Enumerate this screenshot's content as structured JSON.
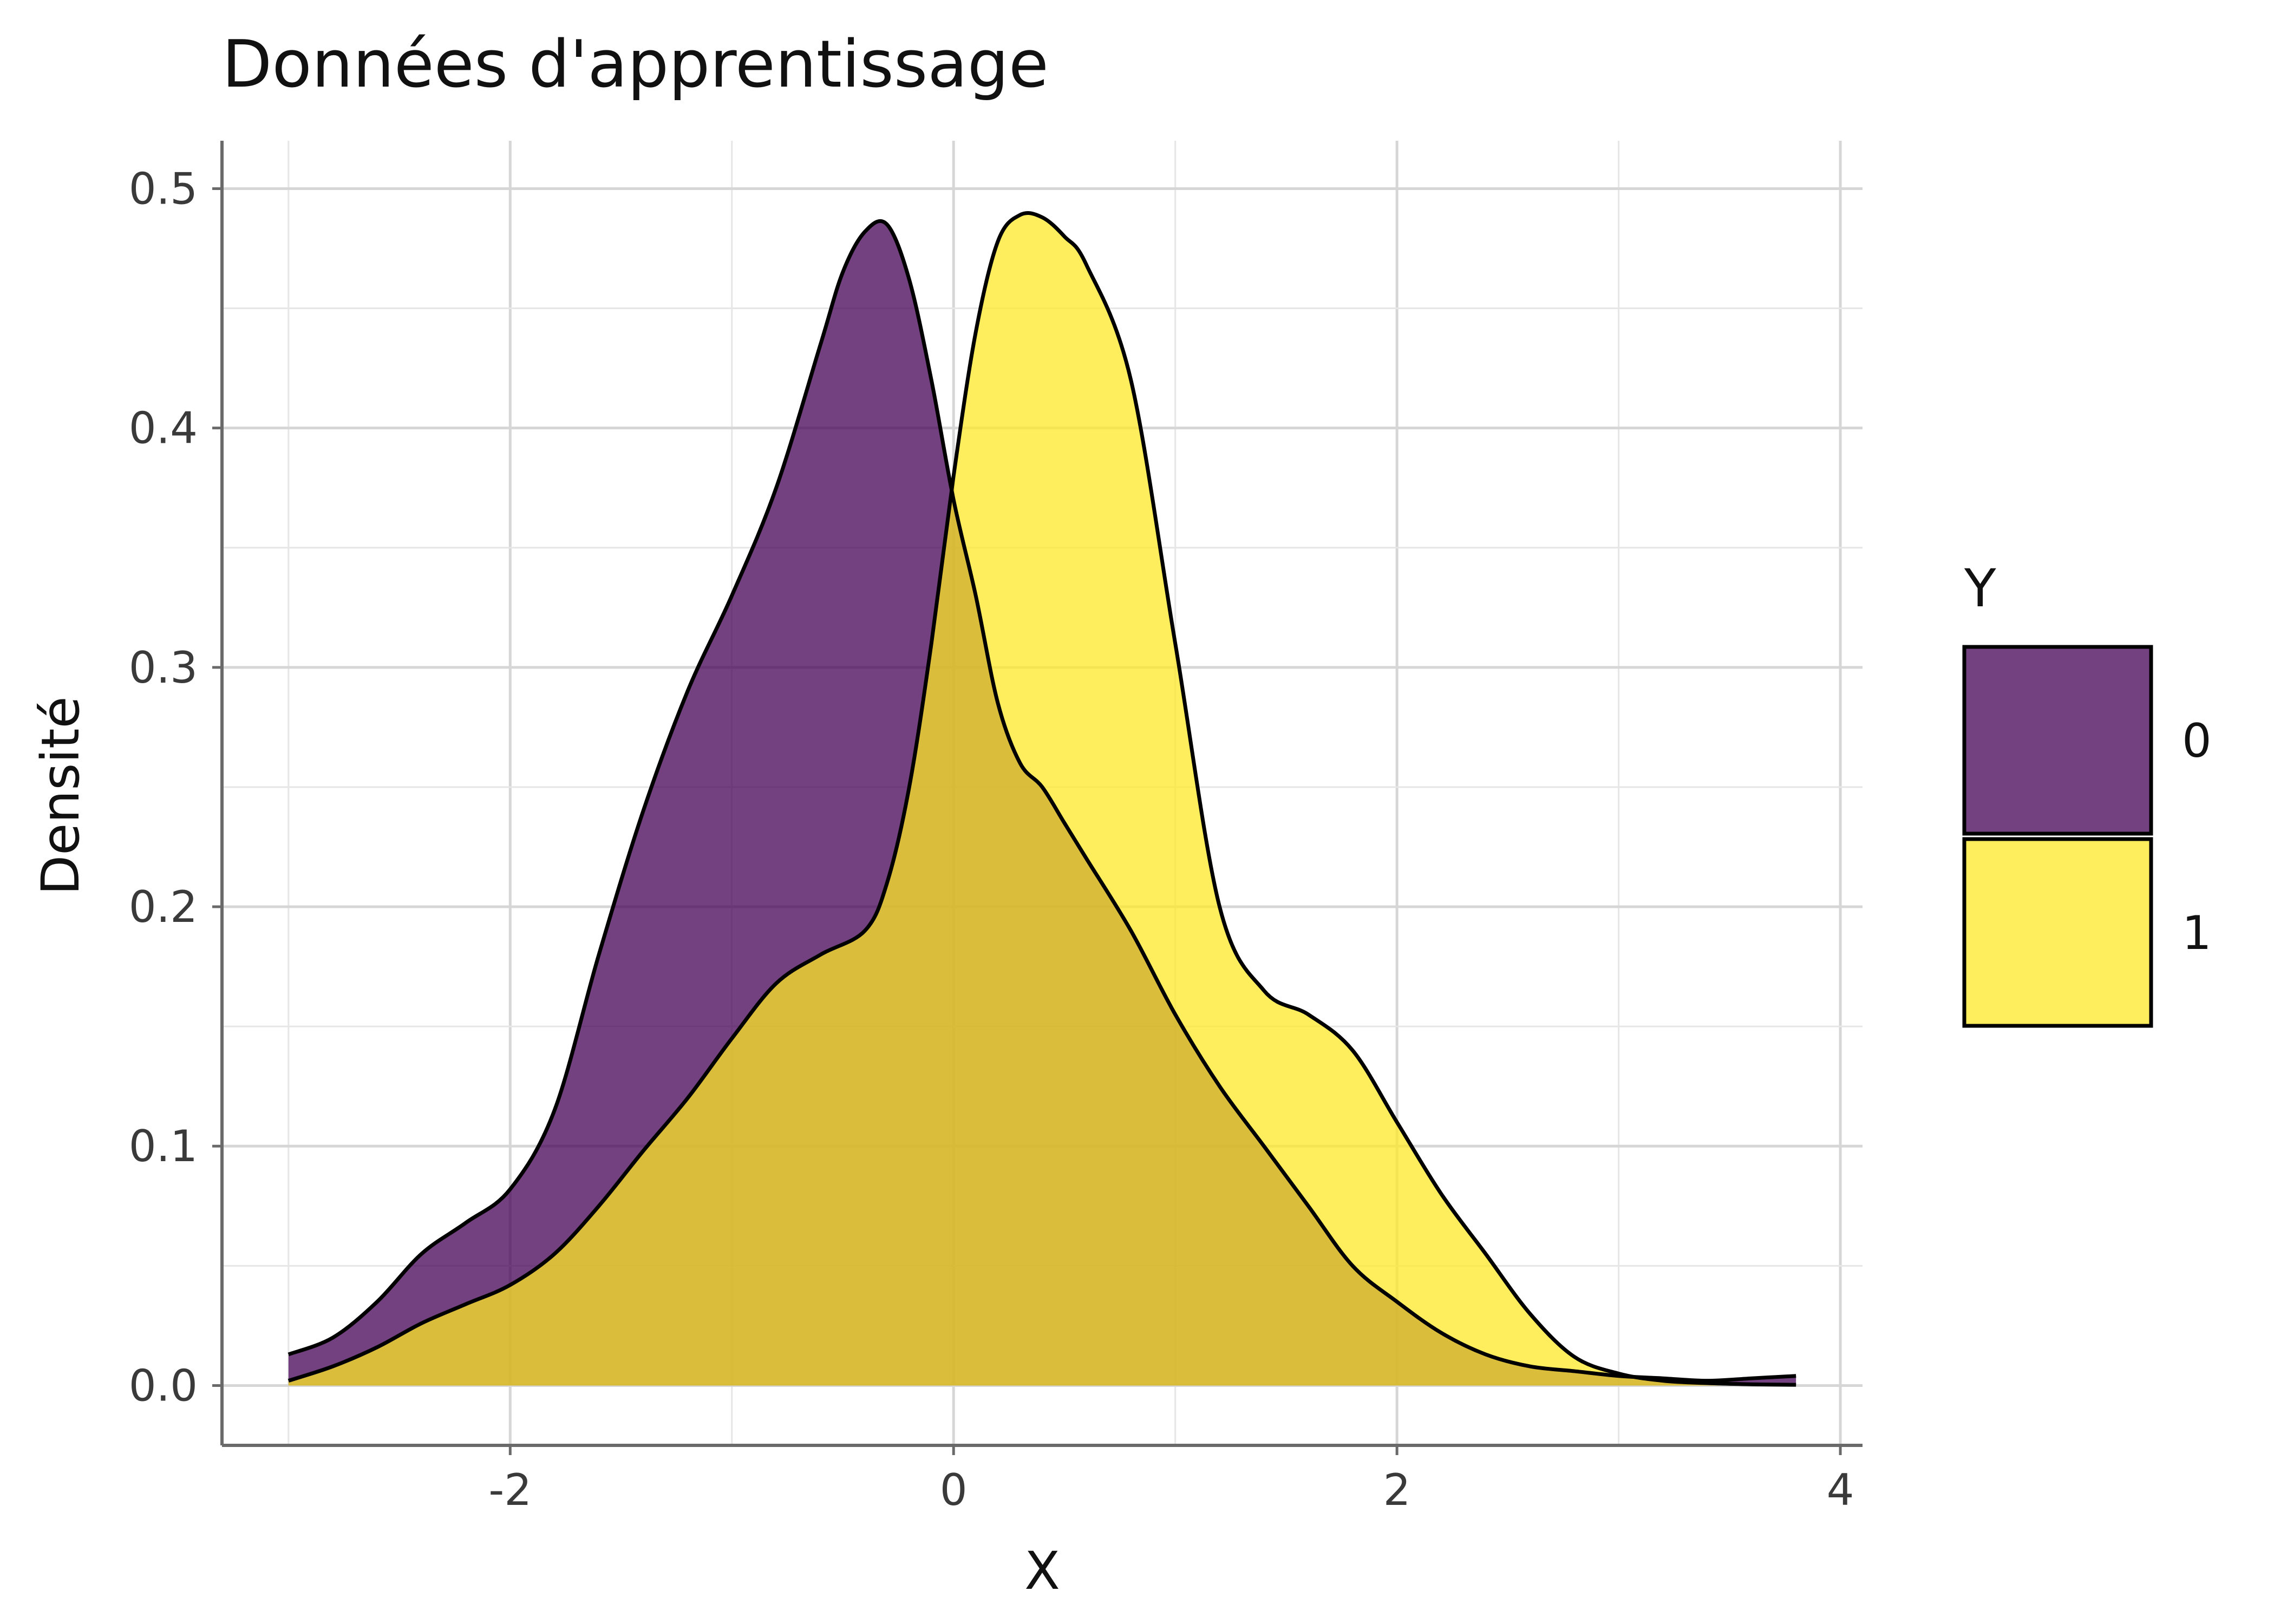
{
  "chart_data": {
    "type": "area",
    "title": "Données d'apprentissage",
    "xlabel": "X",
    "ylabel": "Densité",
    "xlim": [
      -3.3,
      4.1
    ],
    "ylim": [
      -0.025,
      0.52
    ],
    "x_ticks": [
      -2,
      0,
      2,
      4
    ],
    "x_tick_labels": [
      "-2",
      "0",
      "2",
      "4"
    ],
    "y_ticks": [
      0.0,
      0.1,
      0.2,
      0.3,
      0.4,
      0.5
    ],
    "y_tick_labels": [
      "0.0",
      "0.1",
      "0.2",
      "0.3",
      "0.4",
      "0.5"
    ],
    "grid": true,
    "legend": {
      "title": "Y",
      "position": "right"
    },
    "series": [
      {
        "name": "0",
        "color": "#440154",
        "opacity": 0.75,
        "x": [
          -3.0,
          -2.8,
          -2.6,
          -2.4,
          -2.2,
          -2.0,
          -1.8,
          -1.6,
          -1.4,
          -1.2,
          -1.0,
          -0.8,
          -0.6,
          -0.5,
          -0.4,
          -0.3,
          -0.2,
          -0.1,
          0.0,
          0.1,
          0.2,
          0.3,
          0.4,
          0.5,
          0.6,
          0.8,
          1.0,
          1.2,
          1.4,
          1.6,
          1.8,
          2.0,
          2.2,
          2.4,
          2.6,
          2.8,
          3.0,
          3.2,
          3.4,
          3.6,
          3.8
        ],
        "y": [
          0.013,
          0.02,
          0.035,
          0.055,
          0.068,
          0.082,
          0.115,
          0.18,
          0.24,
          0.29,
          0.33,
          0.375,
          0.435,
          0.465,
          0.482,
          0.485,
          0.462,
          0.42,
          0.37,
          0.33,
          0.285,
          0.26,
          0.25,
          0.235,
          0.22,
          0.19,
          0.155,
          0.125,
          0.1,
          0.075,
          0.05,
          0.035,
          0.022,
          0.013,
          0.008,
          0.006,
          0.004,
          0.003,
          0.002,
          0.003,
          0.004
        ]
      },
      {
        "name": "1",
        "color": "#FDE725",
        "opacity": 0.75,
        "x": [
          -3.0,
          -2.8,
          -2.6,
          -2.4,
          -2.2,
          -2.0,
          -1.8,
          -1.6,
          -1.4,
          -1.2,
          -1.0,
          -0.8,
          -0.6,
          -0.4,
          -0.3,
          -0.2,
          -0.1,
          0.0,
          0.1,
          0.2,
          0.3,
          0.4,
          0.5,
          0.6,
          0.8,
          1.0,
          1.2,
          1.4,
          1.6,
          1.8,
          2.0,
          2.2,
          2.4,
          2.6,
          2.8,
          3.0,
          3.2,
          3.4,
          3.6,
          3.8
        ],
        "y": [
          0.002,
          0.008,
          0.016,
          0.026,
          0.034,
          0.042,
          0.055,
          0.075,
          0.098,
          0.12,
          0.145,
          0.168,
          0.18,
          0.19,
          0.21,
          0.25,
          0.31,
          0.38,
          0.44,
          0.478,
          0.489,
          0.488,
          0.48,
          0.468,
          0.42,
          0.31,
          0.2,
          0.165,
          0.155,
          0.14,
          0.11,
          0.08,
          0.055,
          0.03,
          0.012,
          0.005,
          0.002,
          0.001,
          0.0005,
          0.0003
        ]
      }
    ]
  }
}
